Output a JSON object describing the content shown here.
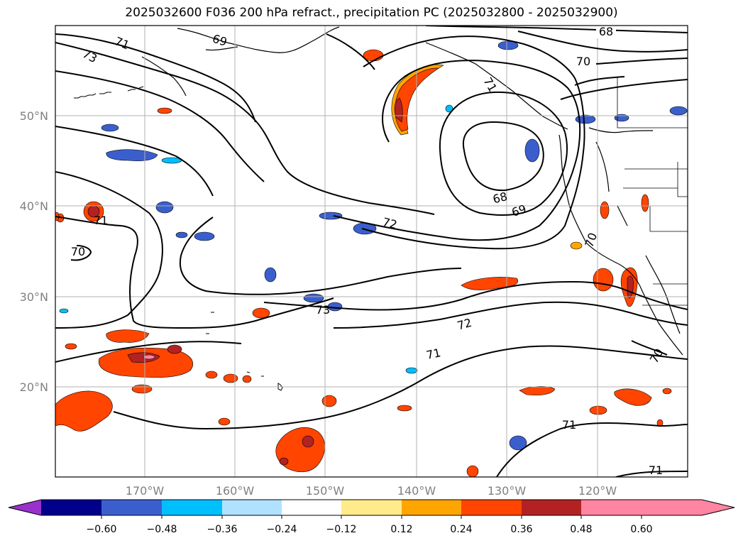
{
  "title": "2025032600 F036 200 hPa refract., precipitation PC (2025032800 - 2025032900)",
  "map": {
    "lat_ticks": [
      "50°N",
      "40°N",
      "30°N",
      "20°N"
    ],
    "lon_ticks": [
      "170°W",
      "160°W",
      "150°W",
      "140°W",
      "130°W",
      "120°W"
    ],
    "contour_labels": [
      "68",
      "69",
      "70",
      "71",
      "72",
      "73",
      "73",
      "71",
      "70",
      "71",
      "72",
      "71",
      "70",
      "71",
      "71",
      "69",
      "68",
      "70"
    ]
  },
  "colorbar": {
    "labels": [
      "−0.60",
      "−0.48",
      "−0.36",
      "−0.24",
      "−0.12",
      "0.12",
      "0.24",
      "0.36",
      "0.48",
      "0.60"
    ],
    "colors": [
      "#9932cc",
      "#00008b",
      "#3a5fcd",
      "#00bfff",
      "#b0e2ff",
      "#ffffff",
      "#ffeb8a",
      "#ffa500",
      "#ff4500",
      "#b22222",
      "#ff85a2"
    ]
  }
}
